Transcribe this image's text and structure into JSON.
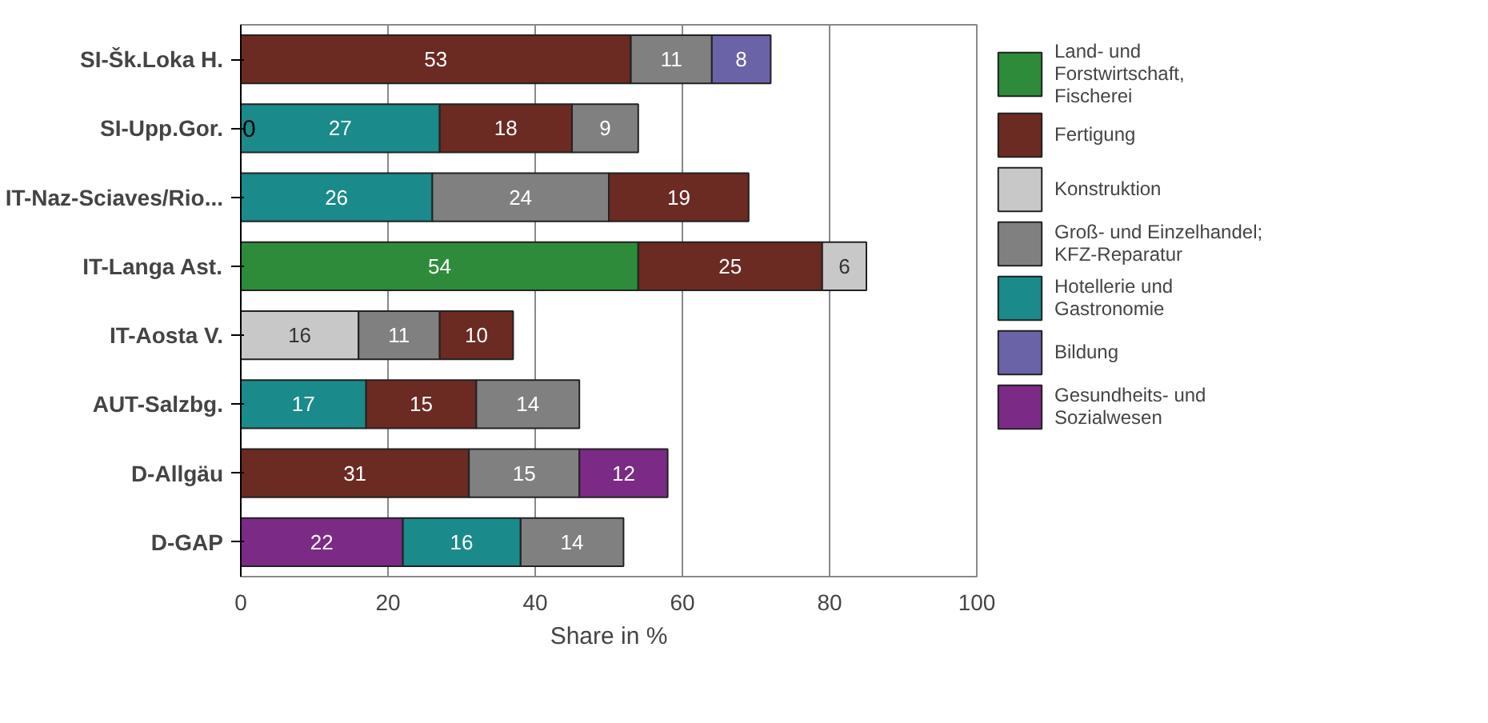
{
  "chart_data": {
    "type": "bar",
    "orientation": "horizontal",
    "xlabel": "Share in %",
    "categories": [
      "SI-Šk.Loka H.",
      "SI-Upp.Gor.",
      "IT-Naz-Sciaves/Rio...",
      "IT-Langa Ast.",
      "IT-Aosta V.",
      "AUT-Salzbg.",
      "D-Allgäu",
      "D-GAP"
    ],
    "series": [
      {
        "name": "Land- und Forstwirtschaft, Fischerei",
        "color": "#2e8b3a",
        "values": [
          null,
          null,
          null,
          54,
          null,
          null,
          null,
          null
        ],
        "base": [
          null,
          null,
          null,
          0,
          null,
          null,
          null,
          null
        ]
      },
      {
        "name": "Fertigung",
        "color": "#6b2a22",
        "values": [
          53,
          18,
          19,
          25,
          10,
          15,
          31,
          null
        ],
        "base": [
          0,
          27,
          50,
          54,
          27,
          17,
          0,
          null
        ]
      },
      {
        "name": "Konstruktion",
        "color": "#c8c8c8",
        "values": [
          null,
          null,
          null,
          6,
          16,
          null,
          null,
          null
        ],
        "base": [
          null,
          null,
          null,
          79,
          0,
          null,
          null,
          null
        ]
      },
      {
        "name": "Groß- und Einzelhandel; KFZ-Reparatur",
        "color": "#808080",
        "values": [
          11,
          9,
          24,
          null,
          11,
          14,
          15,
          14
        ],
        "base": [
          53,
          45,
          26,
          null,
          16,
          32,
          31,
          38
        ]
      },
      {
        "name": "Hotellerie und Gastronomie",
        "color": "#1a8a8a",
        "values": [
          null,
          27,
          26,
          null,
          null,
          17,
          null,
          16
        ],
        "base": [
          null,
          0,
          0,
          null,
          null,
          0,
          null,
          22
        ]
      },
      {
        "name": "Bildung",
        "color": "#6a63a8",
        "values": [
          8,
          null,
          null,
          null,
          null,
          null,
          null,
          null
        ],
        "base": [
          64,
          null,
          null,
          null,
          null,
          null,
          null,
          null
        ]
      },
      {
        "name": "Gesundheits- und Sozialwesen",
        "color": "#7b2a85",
        "values": [
          null,
          null,
          null,
          null,
          null,
          null,
          12,
          22
        ],
        "base": [
          null,
          null,
          null,
          null,
          null,
          null,
          46,
          0
        ]
      }
    ],
    "annotations": [
      {
        "text": "0",
        "x": 0,
        "y": "SI-Upp.Gor."
      }
    ],
    "xlim": [
      0,
      100
    ],
    "xticks": [
      0,
      20,
      40,
      60,
      80,
      100
    ],
    "grid": "x",
    "legend": "right",
    "data_labels": true
  }
}
